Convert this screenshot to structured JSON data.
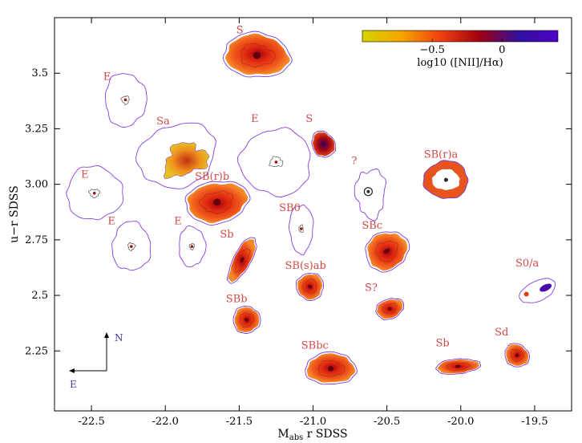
{
  "chart_data": {
    "type": "scatter",
    "title": "",
    "xlabel": "M_abs r SDSS",
    "xlabel_main": "M",
    "xlabel_sub": "abs",
    "xlabel_rest": " r SDSS",
    "ylabel": "u−r SDSS",
    "xlim": [
      -22.75,
      -19.25
    ],
    "ylim": [
      1.98,
      3.75
    ],
    "x_ticks": [
      -22.5,
      -22.0,
      -21.5,
      -21.0,
      -20.5,
      -20.0,
      -19.5
    ],
    "x_tick_labels": [
      "-22.5",
      "-22.0",
      "-21.5",
      "-21.0",
      "-20.5",
      "-20.0",
      "-19.5"
    ],
    "y_ticks": [
      2.25,
      2.5,
      2.75,
      3.0,
      3.25,
      3.5
    ],
    "y_tick_labels": [
      "2.25",
      "2.5",
      "2.75",
      "3.00",
      "3.25",
      "3.5"
    ],
    "grid": false,
    "colorbar": {
      "label": "log10 ([NII]/Hα)",
      "tick_labels": [
        "−0.5",
        "0"
      ],
      "range": [
        -1.0,
        0.4
      ],
      "ticks": [
        -0.5,
        0.0
      ],
      "colors": [
        "#d4d400",
        "#f5a500",
        "#f04010",
        "#a00010",
        "#3010a0",
        "#5000c8"
      ]
    },
    "compass": {
      "north": "N",
      "east": "E"
    },
    "galaxies": [
      {
        "label": "S",
        "x": -21.38,
        "y": 3.58,
        "rx": 0.21,
        "ry": 0.09,
        "angle": 5,
        "kind": "hot",
        "lx": -21.52,
        "ly": 3.68
      },
      {
        "label": "E",
        "x": -22.27,
        "y": 3.38,
        "rx": 0.14,
        "ry": 0.12,
        "angle": 0,
        "kind": "elliptical",
        "lx": -22.42,
        "ly": 3.47
      },
      {
        "label": "Sa",
        "x": -21.92,
        "y": 3.13,
        "rx": 0.27,
        "ry": 0.14,
        "angle": -20,
        "kind": "sa",
        "lx": -22.06,
        "ly": 3.27
      },
      {
        "label": "E",
        "x": -21.25,
        "y": 3.1,
        "rx": 0.24,
        "ry": 0.15,
        "angle": 0,
        "kind": "elliptical",
        "lx": -21.42,
        "ly": 3.28
      },
      {
        "label": "S",
        "x": -20.93,
        "y": 3.18,
        "rx": 0.07,
        "ry": 0.055,
        "angle": -30,
        "kind": "dark",
        "lx": -21.05,
        "ly": 3.28
      },
      {
        "label": "E",
        "x": -22.48,
        "y": 2.96,
        "rx": 0.19,
        "ry": 0.12,
        "angle": 0,
        "kind": "elliptical",
        "lx": -22.57,
        "ly": 3.03
      },
      {
        "label": "SB(r)b",
        "x": -21.65,
        "y": 2.92,
        "rx": 0.2,
        "ry": 0.085,
        "angle": -10,
        "kind": "hot",
        "lx": -21.8,
        "ly": 3.02
      },
      {
        "label": "?",
        "x": -20.61,
        "y": 2.96,
        "rx": 0.1,
        "ry": 0.11,
        "angle": 0,
        "kind": "question",
        "lx": -20.74,
        "ly": 3.09
      },
      {
        "label": "SB(r)a",
        "x": -20.1,
        "y": 3.02,
        "rx": 0.15,
        "ry": 0.085,
        "angle": 0,
        "kind": "ring",
        "lx": -20.25,
        "ly": 3.12
      },
      {
        "label": "E",
        "x": -22.23,
        "y": 2.72,
        "rx": 0.13,
        "ry": 0.11,
        "angle": 0,
        "kind": "elliptical",
        "lx": -22.39,
        "ly": 2.82
      },
      {
        "label": "E",
        "x": -21.82,
        "y": 2.72,
        "rx": 0.09,
        "ry": 0.09,
        "angle": 0,
        "kind": "elliptical",
        "lx": -21.94,
        "ly": 2.82
      },
      {
        "label": "SB0",
        "x": -21.08,
        "y": 2.8,
        "rx": 0.08,
        "ry": 0.11,
        "angle": 0,
        "kind": "elliptical",
        "lx": -21.23,
        "ly": 2.88
      },
      {
        "label": "Sb",
        "x": -21.48,
        "y": 2.66,
        "rx": 0.16,
        "ry": 0.035,
        "angle": -62,
        "kind": "hot",
        "lx": -21.63,
        "ly": 2.76
      },
      {
        "label": "SBc",
        "x": -20.5,
        "y": 2.7,
        "rx": 0.12,
        "ry": 0.09,
        "angle": 60,
        "kind": "hot",
        "lx": -20.67,
        "ly": 2.8
      },
      {
        "label": "SB(s)ab",
        "x": -21.02,
        "y": 2.54,
        "rx": 0.085,
        "ry": 0.055,
        "angle": -60,
        "kind": "hot",
        "lx": -21.19,
        "ly": 2.62
      },
      {
        "label": "S?",
        "x": -20.48,
        "y": 2.44,
        "rx": 0.09,
        "ry": 0.04,
        "angle": -20,
        "kind": "hot",
        "lx": -20.65,
        "ly": 2.52
      },
      {
        "label": "S0/a",
        "x": -19.48,
        "y": 2.52,
        "rx": 0.13,
        "ry": 0.045,
        "angle": -25,
        "kind": "s0a",
        "lx": -19.63,
        "ly": 2.63
      },
      {
        "label": "SBb",
        "x": -21.45,
        "y": 2.39,
        "rx": 0.085,
        "ry": 0.055,
        "angle": -55,
        "kind": "hot",
        "lx": -21.59,
        "ly": 2.47
      },
      {
        "label": "SBbc",
        "x": -20.88,
        "y": 2.17,
        "rx": 0.16,
        "ry": 0.065,
        "angle": 0,
        "kind": "hot",
        "lx": -21.08,
        "ly": 2.26
      },
      {
        "label": "Sb",
        "x": -20.02,
        "y": 2.18,
        "rx": 0.14,
        "ry": 0.03,
        "angle": -5,
        "kind": "hot",
        "lx": -20.17,
        "ly": 2.27
      },
      {
        "label": "Sd",
        "x": -19.62,
        "y": 2.23,
        "rx": 0.08,
        "ry": 0.045,
        "angle": 35,
        "kind": "hot",
        "lx": -19.77,
        "ly": 2.32
      }
    ]
  }
}
